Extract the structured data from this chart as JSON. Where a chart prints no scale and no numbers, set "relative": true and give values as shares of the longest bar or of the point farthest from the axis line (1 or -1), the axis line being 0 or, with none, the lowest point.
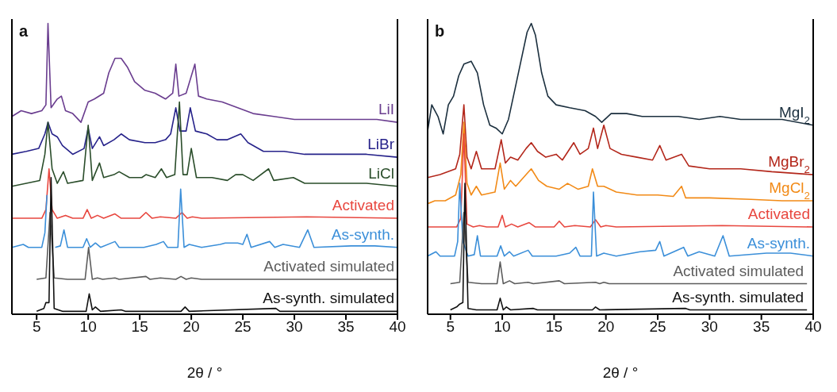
{
  "chart_data": [
    {
      "type": "line",
      "title": "a",
      "xlabel": "2θ / °",
      "xlim": [
        2.6,
        40
      ],
      "xticks": [
        5,
        10,
        15,
        20,
        25,
        30,
        35,
        40
      ],
      "relative": true,
      "legend": false,
      "grid": false,
      "marker": "none",
      "series": [
        {
          "name": "LiI",
          "color": "#6a3d8f",
          "x": [
            2.6,
            3.5,
            4.5,
            5.5,
            5.9,
            6.1,
            6.4,
            7.0,
            7.4,
            7.8,
            8.5,
            9.3,
            10.0,
            10.6,
            11.5,
            12.0,
            12.6,
            13.2,
            13.8,
            14.5,
            15.5,
            16.5,
            17.5,
            18.2,
            18.5,
            18.8,
            19.5,
            20.35,
            20.7,
            21.5,
            23,
            24.5,
            26,
            28,
            30,
            33,
            36,
            38,
            40
          ],
          "values": [
            0.68,
            0.7,
            0.69,
            0.7,
            0.72,
            1.0,
            0.71,
            0.74,
            0.75,
            0.7,
            0.69,
            0.66,
            0.73,
            0.74,
            0.76,
            0.83,
            0.88,
            0.88,
            0.85,
            0.8,
            0.77,
            0.76,
            0.74,
            0.76,
            0.86,
            0.75,
            0.76,
            0.86,
            0.75,
            0.74,
            0.73,
            0.71,
            0.69,
            0.68,
            0.67,
            0.67,
            0.67,
            0.67,
            0.66
          ]
        },
        {
          "name": "LiBr",
          "color": "#26228a",
          "x": [
            2.6,
            4,
            5.2,
            5.8,
            6.1,
            6.5,
            7.0,
            7.5,
            8.5,
            9.6,
            10.0,
            10.4,
            11.1,
            11.5,
            12.5,
            13.2,
            14,
            15.5,
            16.5,
            17.5,
            18.0,
            18.5,
            18.9,
            19.5,
            19.9,
            20.4,
            21.5,
            22.5,
            23.5,
            24.8,
            25.5,
            27,
            29,
            31,
            34,
            37,
            40
          ],
          "values": [
            0.55,
            0.56,
            0.57,
            0.62,
            0.66,
            0.62,
            0.61,
            0.58,
            0.55,
            0.57,
            0.64,
            0.57,
            0.61,
            0.58,
            0.6,
            0.62,
            0.6,
            0.59,
            0.59,
            0.6,
            0.62,
            0.71,
            0.63,
            0.63,
            0.71,
            0.63,
            0.62,
            0.6,
            0.6,
            0.62,
            0.59,
            0.56,
            0.56,
            0.55,
            0.55,
            0.55,
            0.54
          ]
        },
        {
          "name": "LiCl",
          "color": "#2a4d2a",
          "x": [
            2.6,
            4,
            5.3,
            5.8,
            6.1,
            6.5,
            7.0,
            7.6,
            8.0,
            9.5,
            10.0,
            10.4,
            11.1,
            11.5,
            12.5,
            13.0,
            14,
            15.2,
            15.6,
            16.5,
            17.1,
            17.6,
            18.4,
            18.85,
            19.2,
            19.6,
            20.0,
            20.5,
            22,
            23.5,
            24.3,
            25.0,
            26,
            27.5,
            28,
            29.9,
            31,
            34,
            37,
            40
          ],
          "values": [
            0.44,
            0.45,
            0.46,
            0.55,
            0.66,
            0.5,
            0.45,
            0.49,
            0.45,
            0.46,
            0.65,
            0.46,
            0.52,
            0.47,
            0.48,
            0.49,
            0.47,
            0.47,
            0.48,
            0.47,
            0.5,
            0.47,
            0.48,
            0.73,
            0.48,
            0.48,
            0.57,
            0.47,
            0.47,
            0.46,
            0.48,
            0.48,
            0.46,
            0.5,
            0.46,
            0.47,
            0.45,
            0.45,
            0.45,
            0.44
          ]
        },
        {
          "name": "Activated",
          "color": "#e8473f",
          "x": [
            2.6,
            5.5,
            5.9,
            6.2,
            6.5,
            7.0,
            7.8,
            8.5,
            9.5,
            9.9,
            10.3,
            10.9,
            11.5,
            12.6,
            13.2,
            15.0,
            15.6,
            16.2,
            17.0,
            18.5,
            19.1,
            19.6,
            20.1,
            21,
            31.2,
            40
          ],
          "values": [
            0.33,
            0.33,
            0.36,
            0.5,
            0.36,
            0.33,
            0.34,
            0.33,
            0.33,
            0.36,
            0.33,
            0.34,
            0.33,
            0.345,
            0.33,
            0.33,
            0.35,
            0.33,
            0.335,
            0.33,
            0.35,
            0.33,
            0.335,
            0.33,
            0.335,
            0.33
          ]
        },
        {
          "name": "As-synth.",
          "color": "#3b8fd9",
          "x": [
            2.6,
            3.7,
            4.2,
            5.5,
            5.8,
            6.0,
            6.3,
            6.8,
            7.3,
            7.65,
            8.0,
            9.5,
            9.85,
            10.2,
            10.7,
            11.2,
            12.6,
            13,
            15.4,
            16.6,
            17.3,
            17.7,
            18.7,
            18.97,
            19.3,
            19.8,
            21,
            22.8,
            23.3,
            24.5,
            25.0,
            25.4,
            25.8,
            27.6,
            28.1,
            28.9,
            30.5,
            31.3,
            31.9,
            35.5,
            37.8,
            40
          ],
          "values": [
            0.23,
            0.24,
            0.23,
            0.23,
            0.28,
            0.41,
            null,
            0.23,
            0.235,
            0.29,
            0.23,
            0.23,
            0.26,
            0.23,
            0.245,
            0.23,
            0.25,
            0.23,
            0.23,
            0.24,
            0.25,
            0.23,
            0.23,
            0.43,
            0.23,
            0.24,
            0.23,
            0.24,
            0.245,
            0.245,
            0.24,
            0.275,
            0.23,
            0.25,
            0.23,
            0.24,
            0.23,
            0.29,
            0.23,
            0.235,
            0.235,
            0.23
          ]
        },
        {
          "name": "Activated simulated",
          "color": "#5c5c5c",
          "x": [
            5,
            5.9,
            6.3,
            6.7,
            8,
            9.7,
            10.04,
            10.4,
            10.9,
            11.4,
            12.6,
            13,
            15.6,
            16,
            17,
            18.5,
            19.0,
            19.5,
            20.0,
            21,
            40
          ],
          "values": [
            0.12,
            0.125,
            0.35,
            0.125,
            0.12,
            0.12,
            0.23,
            0.12,
            0.125,
            0.12,
            0.125,
            0.12,
            0.13,
            0.12,
            0.125,
            0.12,
            0.13,
            0.12,
            0.125,
            0.12,
            0.12
          ]
        },
        {
          "name": "As-synth. simulated",
          "color": "#111111",
          "x": [
            5,
            5.7,
            5.9,
            6.2,
            6.4,
            6.7,
            7.5,
            9.8,
            10.1,
            10.4,
            10.7,
            11.2,
            13.2,
            13.6,
            19.0,
            19.4,
            19.8,
            28.2,
            28.6,
            40
          ],
          "values": [
            0.01,
            0.02,
            0.04,
            0.04,
            0.47,
            0.02,
            0.01,
            0.01,
            0.07,
            0.015,
            0.025,
            0.01,
            0.015,
            0.01,
            0.01,
            0.025,
            0.01,
            0.02,
            0.01,
            0.01
          ]
        }
      ]
    },
    {
      "type": "line",
      "title": "b",
      "xlabel": "2θ / °",
      "xlim": [
        2.8,
        40
      ],
      "xticks": [
        5,
        10,
        15,
        20,
        25,
        30,
        35,
        40
      ],
      "relative": true,
      "legend": false,
      "grid": false,
      "marker": "none",
      "series": [
        {
          "name": "MgI$_{2}$",
          "color": "#1b2f3e",
          "x": [
            2.8,
            3.2,
            3.8,
            4.3,
            4.8,
            5.3,
            5.8,
            6.3,
            7.0,
            7.6,
            8.2,
            8.8,
            9.4,
            10.0,
            10.6,
            11.2,
            11.8,
            12.4,
            12.8,
            13.2,
            13.8,
            14.4,
            15.2,
            16.5,
            18,
            19,
            19.6,
            20.5,
            22,
            23.5,
            25,
            27,
            29,
            31,
            33,
            35,
            37,
            40
          ],
          "values": [
            0.63,
            0.72,
            0.68,
            0.62,
            0.72,
            0.75,
            0.82,
            0.86,
            0.87,
            0.83,
            0.72,
            0.65,
            0.64,
            0.62,
            0.67,
            0.77,
            0.87,
            0.97,
            1.0,
            0.96,
            0.83,
            0.75,
            0.72,
            0.71,
            0.7,
            0.68,
            0.66,
            0.69,
            0.69,
            0.68,
            0.68,
            0.68,
            0.67,
            0.68,
            0.67,
            0.67,
            0.67,
            0.65
          ]
        },
        {
          "name": "MgBr$_{2}$",
          "color": "#b3261a",
          "x": [
            2.8,
            4,
            5.5,
            5.9,
            6.3,
            6.6,
            7.0,
            7.5,
            8.0,
            9.3,
            9.9,
            10.3,
            10.8,
            11.5,
            12.3,
            12.8,
            13.4,
            14.2,
            15.2,
            15.8,
            16.9,
            17.5,
            18.3,
            18.8,
            19.2,
            19.8,
            20.4,
            21.5,
            23,
            24.5,
            25.2,
            25.8,
            27.3,
            28,
            30,
            33,
            36,
            40
          ],
          "values": [
            0.47,
            0.48,
            0.5,
            0.55,
            0.72,
            0.54,
            0.5,
            0.56,
            0.5,
            0.5,
            0.6,
            0.52,
            0.54,
            0.53,
            0.57,
            0.59,
            0.56,
            0.54,
            0.55,
            0.53,
            0.59,
            0.55,
            0.57,
            0.64,
            0.57,
            0.65,
            0.57,
            0.55,
            0.54,
            0.53,
            0.58,
            0.53,
            0.55,
            0.51,
            0.5,
            0.5,
            0.49,
            0.48
          ]
        },
        {
          "name": "MgCl$_{2}$",
          "color": "#f28a16",
          "x": [
            2.8,
            3.5,
            4.5,
            5.5,
            6.0,
            6.3,
            6.6,
            7.0,
            7.5,
            8.0,
            9.3,
            9.8,
            10.2,
            10.8,
            11.3,
            12.3,
            12.8,
            13.5,
            14.3,
            15.5,
            16.3,
            17.3,
            18.3,
            18.7,
            19.2,
            19.8,
            21,
            23,
            25,
            26.5,
            27.3,
            27.7,
            30,
            34,
            37,
            40
          ],
          "values": [
            0.38,
            0.39,
            0.39,
            0.41,
            0.48,
            0.66,
            0.45,
            0.41,
            0.44,
            0.41,
            0.42,
            0.52,
            0.43,
            0.46,
            0.44,
            0.48,
            0.5,
            0.46,
            0.44,
            0.43,
            0.45,
            0.43,
            0.44,
            0.5,
            0.44,
            0.44,
            0.42,
            0.41,
            0.41,
            0.405,
            0.44,
            0.4,
            0.4,
            0.395,
            0.39,
            0.39
          ]
        },
        {
          "name": "Activated",
          "color": "#e8473f",
          "x": [
            2.8,
            5.6,
            6.0,
            6.3,
            6.6,
            7.2,
            7.8,
            8.5,
            9.6,
            10.0,
            10.3,
            10.9,
            11.5,
            12.6,
            13.2,
            15.0,
            15.5,
            16.0,
            17.0,
            18.5,
            19.0,
            19.5,
            20.0,
            21,
            31.2,
            40
          ],
          "values": [
            0.3,
            0.3,
            0.33,
            0.62,
            0.31,
            0.3,
            0.305,
            0.3,
            0.3,
            0.34,
            0.3,
            0.31,
            0.3,
            0.315,
            0.3,
            0.3,
            0.32,
            0.3,
            0.305,
            0.3,
            0.325,
            0.3,
            0.305,
            0.3,
            0.305,
            0.3
          ]
        },
        {
          "name": "As-synth.",
          "color": "#3b8fd9",
          "x": [
            2.8,
            3.6,
            4.0,
            5.4,
            5.7,
            5.9,
            6.2,
            6.7,
            7.3,
            7.6,
            7.9,
            9.5,
            9.85,
            10.2,
            10.7,
            11.1,
            12.5,
            12.9,
            15.2,
            16.5,
            17.1,
            17.5,
            18.6,
            18.8,
            19.1,
            19.8,
            21,
            23.3,
            24.8,
            25.2,
            25.6,
            27.5,
            27.9,
            29,
            30.5,
            31.3,
            31.9,
            35.5,
            37.8,
            40
          ],
          "values": [
            0.2,
            0.215,
            0.2,
            0.2,
            0.25,
            0.45,
            0.25,
            0.2,
            0.205,
            0.27,
            0.2,
            0.2,
            0.235,
            0.2,
            0.215,
            0.2,
            0.22,
            0.2,
            0.2,
            0.21,
            0.23,
            0.2,
            0.2,
            0.42,
            0.2,
            0.21,
            0.2,
            0.215,
            0.22,
            0.25,
            0.2,
            0.23,
            0.2,
            0.215,
            0.2,
            0.27,
            0.2,
            0.21,
            0.21,
            0.2
          ]
        },
        {
          "name": "Activated simulated",
          "color": "#5c5c5c",
          "x": [
            5,
            5.9,
            6.3,
            6.7,
            8,
            9.5,
            9.8,
            10.1,
            10.7,
            11.2,
            12.5,
            13,
            15.5,
            16,
            19.0,
            19.4,
            19.8,
            20.3,
            39.4
          ],
          "values": [
            0.105,
            0.11,
            0.35,
            0.11,
            0.105,
            0.105,
            0.18,
            0.105,
            0.115,
            0.105,
            0.11,
            0.105,
            0.115,
            0.105,
            0.11,
            0.105,
            0.11,
            0.105,
            0.105
          ]
        },
        {
          "name": "As-synth. simulated",
          "color": "#111111",
          "x": [
            5,
            5.6,
            5.9,
            6.2,
            6.4,
            6.7,
            7.5,
            9.5,
            9.8,
            10.1,
            10.4,
            10.8,
            13.0,
            13.4,
            18.7,
            19.0,
            19.4,
            27.7,
            28.1,
            39.4
          ],
          "values": [
            0.015,
            0.025,
            0.035,
            0.04,
            0.45,
            0.02,
            0.015,
            0.015,
            0.055,
            0.015,
            0.025,
            0.015,
            0.02,
            0.015,
            0.015,
            0.025,
            0.015,
            0.02,
            0.015,
            0.015
          ]
        }
      ]
    }
  ]
}
